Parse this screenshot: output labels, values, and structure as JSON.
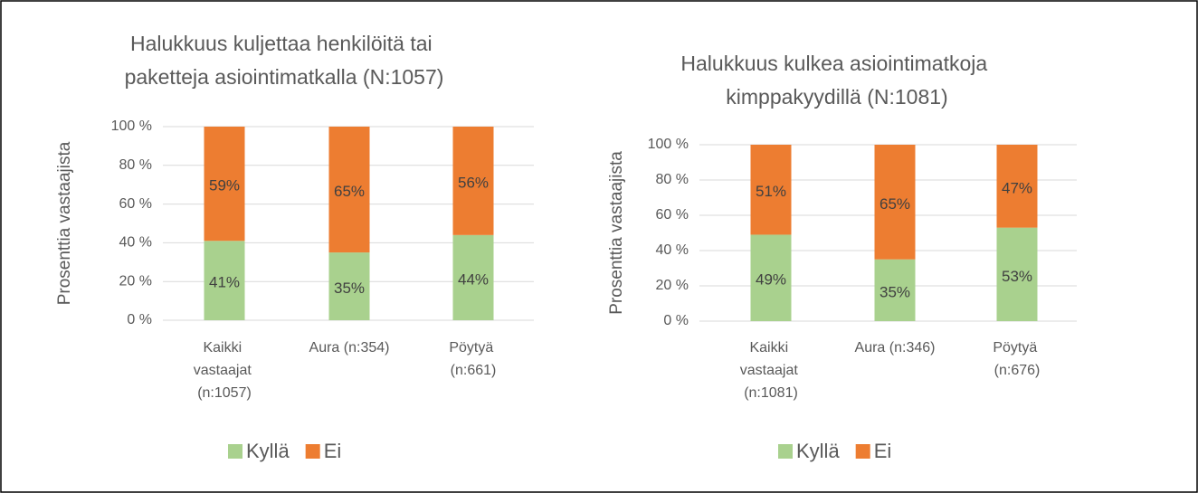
{
  "chart_data": [
    {
      "type": "stacked_bar",
      "title": "Halukkuus kuljettaa henkilöitä tai paketteja asiointimatkalla (N:1057)",
      "y_label": "Prosenttia vastaajista",
      "categories": [
        "Kaikki vastaajat (n:1057)",
        "Aura (n:354)",
        "Pöytyä (n:661)"
      ],
      "series": [
        {
          "name": "Kyllä",
          "color": "#a9d18e",
          "values": [
            41,
            35,
            44
          ],
          "value_labels": [
            "41%",
            "35%",
            "44%"
          ]
        },
        {
          "name": "Ei",
          "color": "#ed7d31",
          "values": [
            59,
            65,
            56
          ],
          "value_labels": [
            "59%",
            "65%",
            "56%"
          ]
        }
      ],
      "ylim": [
        0,
        100
      ],
      "yticks": [
        {
          "value": 0,
          "label": "0 %"
        },
        {
          "value": 20,
          "label": "20 %"
        },
        {
          "value": 40,
          "label": "40 %"
        },
        {
          "value": 60,
          "label": "60 %"
        },
        {
          "value": 80,
          "label": "80 %"
        },
        {
          "value": 100,
          "label": "100 %"
        }
      ],
      "grid": true,
      "legend": "bottom"
    },
    {
      "type": "stacked_bar",
      "title": "Halukkuus kulkea asiointimatkoja kimppakyydillä (N:1081)",
      "y_label": "Prosenttia vastaajista",
      "categories": [
        "Kaikki vastaajat (n:1081)",
        "Aura (n:346)",
        "Pöytyä (n:676)"
      ],
      "series": [
        {
          "name": "Kyllä",
          "color": "#a9d18e",
          "values": [
            49,
            35,
            53
          ],
          "value_labels": [
            "49%",
            "35%",
            "53%"
          ]
        },
        {
          "name": "Ei",
          "color": "#ed7d31",
          "values": [
            51,
            65,
            47
          ],
          "value_labels": [
            "51%",
            "65%",
            "47%"
          ]
        }
      ],
      "ylim": [
        0,
        100
      ],
      "yticks": [
        {
          "value": 0,
          "label": "0 %"
        },
        {
          "value": 20,
          "label": "20 %"
        },
        {
          "value": 40,
          "label": "40 %"
        },
        {
          "value": 60,
          "label": "60 %"
        },
        {
          "value": 80,
          "label": "80 %"
        },
        {
          "value": 100,
          "label": "100 %"
        }
      ],
      "grid": true,
      "legend": "bottom"
    }
  ]
}
